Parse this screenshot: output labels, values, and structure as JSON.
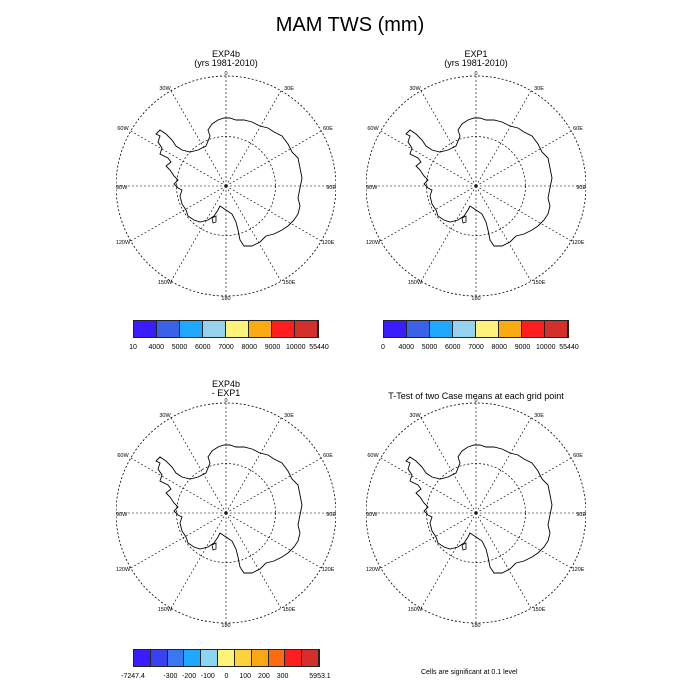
{
  "main_title": "MAM TWS (mm)",
  "panels": [
    {
      "title_line1": "EXP4b",
      "title_line2": "(yrs 1981-2010)"
    },
    {
      "title_line1": "EXP1",
      "title_line2": "(yrs 1981-2010)"
    },
    {
      "title_line1": "EXP4b",
      "title_line2": "- EXP1"
    },
    {
      "title_line1": "T-Test of two Case means at each grid point",
      "title_line2": ""
    }
  ],
  "map_labels": {
    "top": "0",
    "right": "90E",
    "bottom": "180",
    "left": "90W",
    "upper_left": "30W",
    "upper_right": "30E",
    "left_upper": "60W",
    "right_upper": "60E",
    "left_lower": "120W",
    "right_lower": "120E",
    "lower_left": "150W",
    "lower_right": "150E"
  },
  "colorbars": {
    "abs1": {
      "colors": [
        "#3b1cff",
        "#3a62e8",
        "#1ea9ff",
        "#96d2ee",
        "#fdf37a",
        "#fbab12",
        "#ff1e1e",
        "#d4302b"
      ],
      "labels": [
        "10",
        "4000",
        "5000",
        "6000",
        "7000",
        "8000",
        "9000",
        "10000",
        "55440"
      ]
    },
    "abs2": {
      "colors": [
        "#3b1cff",
        "#3a62e8",
        "#1ea9ff",
        "#96d2ee",
        "#fdf37a",
        "#fbab12",
        "#ff1e1e",
        "#d4302b"
      ],
      "labels": [
        "0",
        "4000",
        "5000",
        "6000",
        "7000",
        "8000",
        "9000",
        "10000",
        "55440"
      ]
    },
    "diff": {
      "colors": [
        "#3b1cff",
        "#3a42f0",
        "#3a78f0",
        "#1ea9ff",
        "#8ad4f4",
        "#fdf37a",
        "#fdd23a",
        "#fba612",
        "#ff6c10",
        "#ff1e1e",
        "#d4302b"
      ],
      "labels": [
        "-7247.4",
        "",
        "-300",
        "-200",
        "-100",
        "0",
        "100",
        "200",
        "300",
        "",
        "5953.1"
      ]
    }
  },
  "note": "Cells are significant at 0.1 level"
}
